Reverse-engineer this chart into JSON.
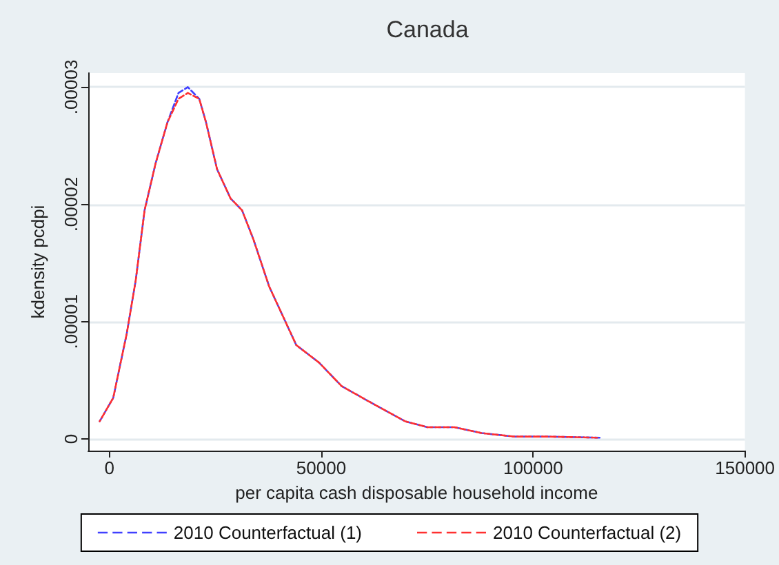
{
  "chart_data": {
    "type": "line",
    "title": "Canada",
    "xlabel": "per capita cash disposable household income",
    "ylabel": "kdensity pcdpi",
    "xlim": [
      -5000,
      150000
    ],
    "xticks": [
      0,
      50000,
      100000,
      150000
    ],
    "ylim": [
      -1e-06,
      3.12e-05
    ],
    "yticks": [
      0,
      {
        "value": 1e-05,
        "label": ".00001"
      },
      {
        "value": 2e-05,
        "label": ".00002"
      },
      {
        "value": 3e-05,
        "label": ".00003"
      }
    ],
    "grid": "y",
    "legend": "bottom",
    "marker": "none",
    "line_style": "dashed",
    "x": [
      -2300,
      900,
      4100,
      6200,
      8300,
      10900,
      13700,
      16300,
      18500,
      21200,
      22800,
      25400,
      28600,
      31300,
      34000,
      37700,
      40900,
      44100,
      49500,
      54800,
      62200,
      69800,
      75000,
      81400,
      87800,
      95400,
      102900,
      115700
    ],
    "series": [
      {
        "name": "2010 Counterfactual (1)",
        "color": "#4040ff",
        "values": [
          1.5e-06,
          3.5e-06,
          9e-06,
          1.35e-05,
          1.95e-05,
          2.35e-05,
          2.7e-05,
          2.95e-05,
          3e-05,
          2.9e-05,
          2.7e-05,
          2.3e-05,
          2.05e-05,
          1.95e-05,
          1.7e-05,
          1.3e-05,
          1.05e-05,
          8e-06,
          6.5e-06,
          4.5e-06,
          3e-06,
          1.5e-06,
          1e-06,
          1e-06,
          5e-07,
          2e-07,
          2e-07,
          1e-07
        ]
      },
      {
        "name": "2010 Counterfactual (2)",
        "color": "#ff3030",
        "values": [
          1.5e-06,
          3.5e-06,
          9e-06,
          1.35e-05,
          1.95e-05,
          2.35e-05,
          2.7e-05,
          2.9e-05,
          2.95e-05,
          2.9e-05,
          2.7e-05,
          2.3e-05,
          2.05e-05,
          1.95e-05,
          1.7e-05,
          1.3e-05,
          1.05e-05,
          8e-06,
          6.5e-06,
          4.5e-06,
          3e-06,
          1.5e-06,
          1e-06,
          1e-06,
          5e-07,
          2e-07,
          2e-07,
          1e-07
        ]
      }
    ]
  }
}
